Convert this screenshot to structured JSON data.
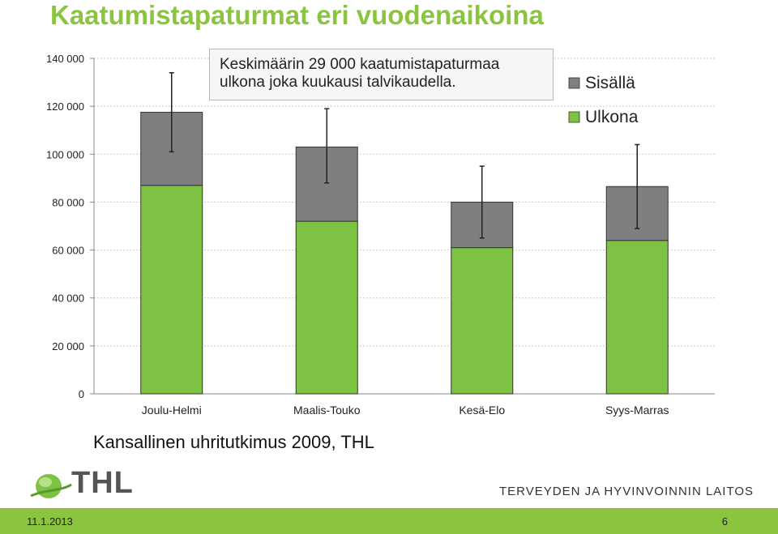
{
  "slide": {
    "title": "Kaatumistapaturmat eri vuodenaikoina",
    "annotation_line1": "Keskimäärin 29 000 kaatumistapaturmaa",
    "annotation_line2": "ulkona joka kuukausi talvikaudella.",
    "source": "Kansallinen uhritutkimus 2009, THL",
    "logo_text": "THL",
    "institute": "TERVEYDEN JA HYVINVOINNIN LAITOS",
    "date": "11.1.2013",
    "page_number": "6"
  },
  "colors": {
    "accent_green": "#8bc53f",
    "ulkona": "#7dc242",
    "sisalla": "#7f7f7f"
  },
  "chart_data": {
    "type": "bar",
    "stacked": true,
    "categories": [
      "Joulu-Helmi",
      "Maalis-Touko",
      "Kesä-Elo",
      "Syys-Marras"
    ],
    "series": [
      {
        "name": "Ulkona",
        "values": [
          87000,
          72000,
          61000,
          64000
        ]
      },
      {
        "name": "Sisällä",
        "values": [
          30500,
          31000,
          19000,
          22500
        ]
      }
    ],
    "error_bars": {
      "low": [
        101000,
        88000,
        65000,
        69000
      ],
      "high": [
        134000,
        119000,
        95000,
        104000
      ]
    },
    "ylim": [
      0,
      140000
    ],
    "yticks": [
      0,
      20000,
      40000,
      60000,
      80000,
      100000,
      120000,
      140000
    ],
    "ytick_labels": [
      "0",
      "20 000",
      "40 000",
      "60 000",
      "80 000",
      "100 000",
      "120 000",
      "140 000"
    ],
    "grid": "horizontal dotted",
    "legend_position": "top-right",
    "legend_order": [
      "Sisällä",
      "Ulkona"
    ]
  }
}
